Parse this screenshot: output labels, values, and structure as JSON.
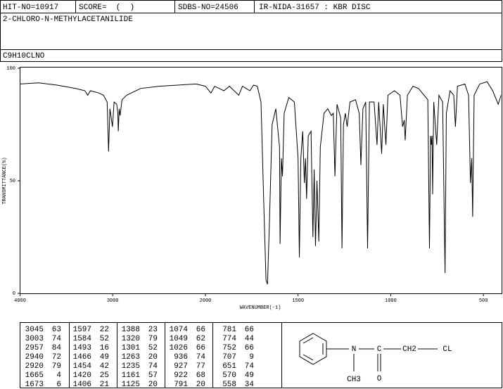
{
  "header": {
    "hit_no": "HIT-NO=10917",
    "score": "SCORE=  (  )",
    "sdbs_no": "SDBS-NO=24506",
    "method": "IR-NIDA-31657 : KBR DISC",
    "name": "2-CHLORO-N-METHYLACETANILIDE",
    "formula": "C9H10CLNO"
  },
  "chart_data": {
    "type": "line",
    "xlabel": "WAVENUMBER(-1)",
    "ylabel": "TRANSMITTANCE(%)",
    "color": "#000000",
    "xlim": [
      4000,
      400
    ],
    "xticks": [
      4000,
      3000,
      2000,
      1500,
      1000,
      500
    ],
    "xscale_change": 2000,
    "ylim": [
      0,
      100
    ],
    "yticks": [
      0,
      50,
      100
    ],
    "x": [
      4000,
      3800,
      3600,
      3400,
      3300,
      3270,
      3240,
      3150,
      3100,
      3060,
      3045,
      3030,
      3003,
      2985,
      2957,
      2945,
      2940,
      2930,
      2920,
      2900,
      2850,
      2700,
      2500,
      2300,
      2100,
      2000,
      1970,
      1950,
      1900,
      1870,
      1820,
      1800,
      1760,
      1740,
      1720,
      1700,
      1685,
      1673,
      1665,
      1655,
      1640,
      1620,
      1600,
      1597,
      1590,
      1584,
      1575,
      1550,
      1520,
      1500,
      1493,
      1485,
      1475,
      1466,
      1460,
      1454,
      1445,
      1430,
      1420,
      1413,
      1406,
      1398,
      1388,
      1380,
      1360,
      1340,
      1320,
      1310,
      1301,
      1290,
      1270,
      1263,
      1255,
      1245,
      1235,
      1220,
      1190,
      1170,
      1161,
      1150,
      1135,
      1125,
      1115,
      1090,
      1074,
      1065,
      1049,
      1040,
      1026,
      1015,
      980,
      950,
      936,
      927,
      922,
      910,
      880,
      850,
      820,
      800,
      791,
      785,
      781,
      777,
      774,
      768,
      752,
      740,
      720,
      707,
      700,
      680,
      660,
      651,
      640,
      600,
      580,
      570,
      563,
      558,
      550,
      520,
      480,
      450,
      420,
      405
    ],
    "values": [
      93,
      93.5,
      92.5,
      91,
      90,
      88,
      90,
      89,
      88,
      85,
      63,
      82,
      74,
      85,
      84,
      80,
      72,
      82,
      79,
      86,
      88,
      91,
      92,
      92.5,
      93,
      92,
      89,
      92,
      90,
      92,
      88,
      92,
      90,
      92.5,
      92,
      85,
      40,
      6,
      4,
      30,
      75,
      82,
      65,
      22,
      60,
      52,
      80,
      87,
      85,
      60,
      16,
      60,
      72,
      49,
      60,
      42,
      70,
      72,
      25,
      55,
      21,
      50,
      23,
      65,
      80,
      82,
      79,
      80,
      52,
      84,
      78,
      20,
      75,
      80,
      74,
      85,
      86,
      80,
      57,
      82,
      85,
      20,
      85,
      85,
      66,
      85,
      62,
      84,
      66,
      88,
      90,
      88,
      74,
      77,
      68,
      88,
      92,
      91,
      88,
      86,
      20,
      70,
      66,
      70,
      44,
      85,
      66,
      88,
      85,
      9,
      80,
      90,
      88,
      74,
      92,
      93,
      88,
      49,
      60,
      34,
      88,
      93,
      94,
      90,
      84,
      88
    ]
  },
  "table": {
    "rows": [
      [
        [
          "3045",
          "63"
        ],
        [
          "1597",
          "22"
        ],
        [
          "1388",
          "23"
        ],
        [
          "1074",
          "66"
        ],
        [
          "781",
          "66"
        ]
      ],
      [
        [
          "3003",
          "74"
        ],
        [
          "1584",
          "52"
        ],
        [
          "1320",
          "79"
        ],
        [
          "1049",
          "62"
        ],
        [
          "774",
          "44"
        ]
      ],
      [
        [
          "2957",
          "84"
        ],
        [
          "1493",
          "16"
        ],
        [
          "1301",
          "52"
        ],
        [
          "1026",
          "66"
        ],
        [
          "752",
          "66"
        ]
      ],
      [
        [
          "2940",
          "72"
        ],
        [
          "1466",
          "49"
        ],
        [
          "1263",
          "20"
        ],
        [
          "936",
          "74"
        ],
        [
          "707",
          "9"
        ]
      ],
      [
        [
          "2920",
          "79"
        ],
        [
          "1454",
          "42"
        ],
        [
          "1235",
          "74"
        ],
        [
          "927",
          "77"
        ],
        [
          "651",
          "74"
        ]
      ],
      [
        [
          "1665",
          "4"
        ],
        [
          "1420",
          "25"
        ],
        [
          "1161",
          "57"
        ],
        [
          "922",
          "68"
        ],
        [
          "570",
          "49"
        ]
      ],
      [
        [
          "1673",
          "6"
        ],
        [
          "1406",
          "21"
        ],
        [
          "1125",
          "20"
        ],
        [
          "791",
          "20"
        ],
        [
          "558",
          "34"
        ]
      ]
    ]
  },
  "structure": {
    "n": "N",
    "c": "C",
    "ch2": "CH2",
    "cl": "CL",
    "ch3": "CH3",
    "o": "O"
  }
}
